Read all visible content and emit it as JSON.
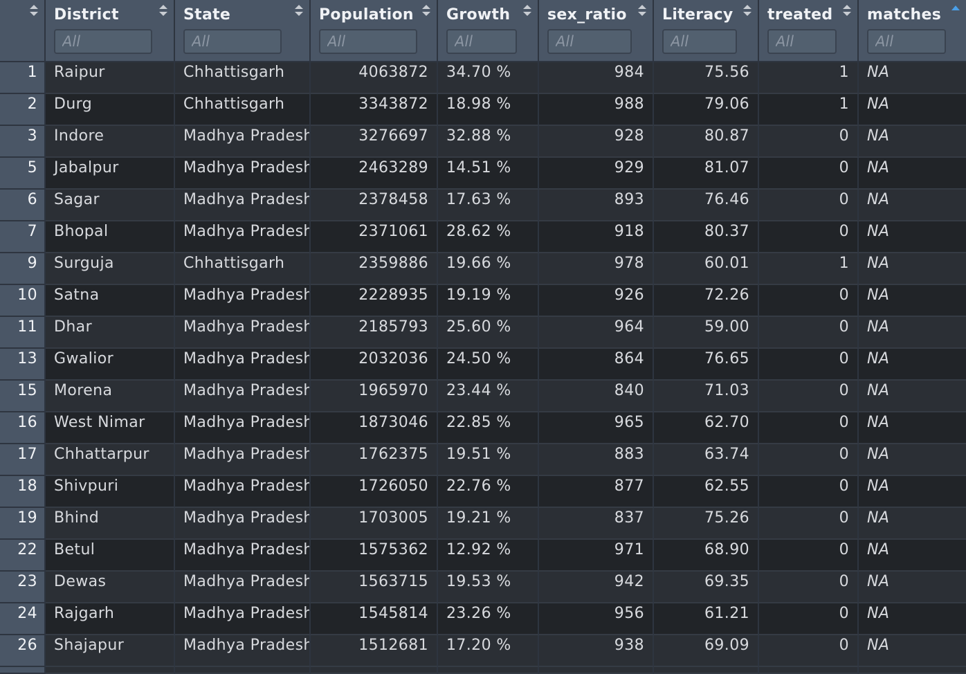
{
  "columns": [
    {
      "key": "index",
      "label": "",
      "sortable": true
    },
    {
      "key": "district",
      "label": "District",
      "filter_placeholder": "All"
    },
    {
      "key": "state",
      "label": "State",
      "filter_placeholder": "All"
    },
    {
      "key": "population",
      "label": "Population",
      "filter_placeholder": "All"
    },
    {
      "key": "growth",
      "label": "Growth",
      "filter_placeholder": "All"
    },
    {
      "key": "sex_ratio",
      "label": "sex_ratio",
      "filter_placeholder": "All"
    },
    {
      "key": "literacy",
      "label": "Literacy",
      "filter_placeholder": "All"
    },
    {
      "key": "treated",
      "label": "treated",
      "filter_placeholder": "All"
    },
    {
      "key": "matches",
      "label": "matches",
      "filter_placeholder": "All",
      "sorted": "ascending"
    }
  ],
  "rows": [
    {
      "index": "1",
      "district": "Raipur",
      "state": "Chhattisgarh",
      "population": "4063872",
      "growth": "34.70 %",
      "sex_ratio": "984",
      "literacy": "75.56",
      "treated": "1",
      "matches": "NA"
    },
    {
      "index": "2",
      "district": "Durg",
      "state": "Chhattisgarh",
      "population": "3343872",
      "growth": "18.98 %",
      "sex_ratio": "988",
      "literacy": "79.06",
      "treated": "1",
      "matches": "NA"
    },
    {
      "index": "3",
      "district": "Indore",
      "state": "Madhya Pradesh",
      "population": "3276697",
      "growth": "32.88 %",
      "sex_ratio": "928",
      "literacy": "80.87",
      "treated": "0",
      "matches": "NA"
    },
    {
      "index": "5",
      "district": "Jabalpur",
      "state": "Madhya Pradesh",
      "population": "2463289",
      "growth": "14.51 %",
      "sex_ratio": "929",
      "literacy": "81.07",
      "treated": "0",
      "matches": "NA"
    },
    {
      "index": "6",
      "district": "Sagar",
      "state": "Madhya Pradesh",
      "population": "2378458",
      "growth": "17.63 %",
      "sex_ratio": "893",
      "literacy": "76.46",
      "treated": "0",
      "matches": "NA"
    },
    {
      "index": "7",
      "district": "Bhopal",
      "state": "Madhya Pradesh",
      "population": "2371061",
      "growth": "28.62 %",
      "sex_ratio": "918",
      "literacy": "80.37",
      "treated": "0",
      "matches": "NA"
    },
    {
      "index": "9",
      "district": "Surguja",
      "state": "Chhattisgarh",
      "population": "2359886",
      "growth": "19.66 %",
      "sex_ratio": "978",
      "literacy": "60.01",
      "treated": "1",
      "matches": "NA"
    },
    {
      "index": "10",
      "district": "Satna",
      "state": "Madhya Pradesh",
      "population": "2228935",
      "growth": "19.19 %",
      "sex_ratio": "926",
      "literacy": "72.26",
      "treated": "0",
      "matches": "NA"
    },
    {
      "index": "11",
      "district": "Dhar",
      "state": "Madhya Pradesh",
      "population": "2185793",
      "growth": "25.60 %",
      "sex_ratio": "964",
      "literacy": "59.00",
      "treated": "0",
      "matches": "NA"
    },
    {
      "index": "13",
      "district": "Gwalior",
      "state": "Madhya Pradesh",
      "population": "2032036",
      "growth": "24.50 %",
      "sex_ratio": "864",
      "literacy": "76.65",
      "treated": "0",
      "matches": "NA"
    },
    {
      "index": "15",
      "district": "Morena",
      "state": "Madhya Pradesh",
      "population": "1965970",
      "growth": "23.44 %",
      "sex_ratio": "840",
      "literacy": "71.03",
      "treated": "0",
      "matches": "NA"
    },
    {
      "index": "16",
      "district": "West Nimar",
      "state": "Madhya Pradesh",
      "population": "1873046",
      "growth": "22.85 %",
      "sex_ratio": "965",
      "literacy": "62.70",
      "treated": "0",
      "matches": "NA"
    },
    {
      "index": "17",
      "district": "Chhattarpur",
      "state": "Madhya Pradesh",
      "population": "1762375",
      "growth": "19.51 %",
      "sex_ratio": "883",
      "literacy": "63.74",
      "treated": "0",
      "matches": "NA"
    },
    {
      "index": "18",
      "district": "Shivpuri",
      "state": "Madhya Pradesh",
      "population": "1726050",
      "growth": "22.76 %",
      "sex_ratio": "877",
      "literacy": "62.55",
      "treated": "0",
      "matches": "NA"
    },
    {
      "index": "19",
      "district": "Bhind",
      "state": "Madhya Pradesh",
      "population": "1703005",
      "growth": "19.21 %",
      "sex_ratio": "837",
      "literacy": "75.26",
      "treated": "0",
      "matches": "NA"
    },
    {
      "index": "22",
      "district": "Betul",
      "state": "Madhya Pradesh",
      "population": "1575362",
      "growth": "12.92 %",
      "sex_ratio": "971",
      "literacy": "68.90",
      "treated": "0",
      "matches": "NA"
    },
    {
      "index": "23",
      "district": "Dewas",
      "state": "Madhya Pradesh",
      "population": "1563715",
      "growth": "19.53 %",
      "sex_ratio": "942",
      "literacy": "69.35",
      "treated": "0",
      "matches": "NA"
    },
    {
      "index": "24",
      "district": "Rajgarh",
      "state": "Madhya Pradesh",
      "population": "1545814",
      "growth": "23.26 %",
      "sex_ratio": "956",
      "literacy": "61.21",
      "treated": "0",
      "matches": "NA"
    },
    {
      "index": "26",
      "district": "Shajapur",
      "state": "Madhya Pradesh",
      "population": "1512681",
      "growth": "17.20 %",
      "sex_ratio": "938",
      "literacy": "69.09",
      "treated": "0",
      "matches": "NA"
    }
  ],
  "colors": {
    "header_bg": "#4a5666",
    "row_odd": "#2b2f35",
    "row_even": "#212428",
    "sort_active": "#4a9fe8",
    "sort_inactive": "#c8ccd2"
  }
}
